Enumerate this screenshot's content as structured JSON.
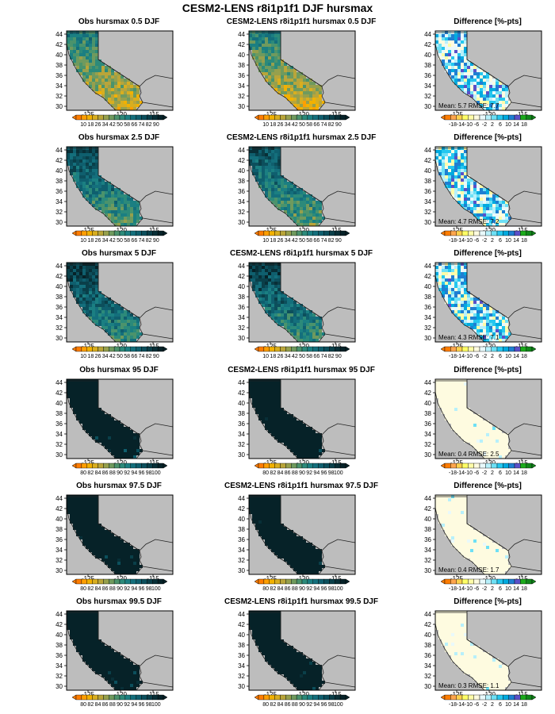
{
  "title": "CESM2-LENS r8i1p1f1 DJF hursmax",
  "colors": {
    "obs_scale": [
      "#ff7d00",
      "#ff9f00",
      "#f2b100",
      "#d8ae20",
      "#b9a53a",
      "#96a04d",
      "#6f9a5e",
      "#4b936c",
      "#2c8a7a",
      "#1b7f82",
      "#146f7c",
      "#0f5f6e",
      "#0c4f5c",
      "#0a3f49",
      "#082f37",
      "#062228"
    ],
    "diff_scale": [
      "#ff7d00",
      "#ffa64d",
      "#ffd24d",
      "#ffff66",
      "#fffca8",
      "#fefbe0",
      "#e9f9fb",
      "#b7f0fb",
      "#6ee0f5",
      "#25c7ef",
      "#00aadf",
      "#1f7fd2",
      "#5a50c8",
      "#1bab1b",
      "#11871a"
    ],
    "land_gray": "#bdbdbd",
    "ocean_gray": "#bdbdbd"
  },
  "common": {
    "lat_ticks": [
      "44",
      "42",
      "40",
      "38",
      "36",
      "34",
      "32",
      "30"
    ],
    "lon_ticks": [
      "-125",
      "-120",
      "-115"
    ]
  },
  "rows": [
    {
      "obs_title": "Obs hursmax 0.5 DJF",
      "model_title": "CESM2-LENS r8i1p1f1 hursmax 0.5 DJF",
      "diff_title": "Difference [%-pts]",
      "scale_labels": [
        "10",
        "18",
        "26",
        "34",
        "42",
        "50",
        "58",
        "66",
        "74",
        "82",
        "90"
      ],
      "stats": "Mean: 5.7  RMSE: 7.7",
      "obs_fill": 0.35,
      "model_fill": 0.33,
      "diff_mean_level": 0.58
    },
    {
      "obs_title": "Obs hursmax 2.5 DJF",
      "model_title": "CESM2-LENS r8i1p1f1 hursmax 2.5 DJF",
      "diff_title": "Difference [%-pts]",
      "scale_labels": [
        "10",
        "18",
        "26",
        "34",
        "42",
        "50",
        "58",
        "66",
        "74",
        "82",
        "90"
      ],
      "stats": "Mean: 4.7  RMSE: 7.2",
      "obs_fill": 0.58,
      "model_fill": 0.56,
      "diff_mean_level": 0.56
    },
    {
      "obs_title": "Obs hursmax 5 DJF",
      "model_title": "CESM2-LENS r8i1p1f1 hursmax 5 DJF",
      "diff_title": "Difference [%-pts]",
      "scale_labels": [
        "10",
        "18",
        "26",
        "34",
        "42",
        "50",
        "58",
        "66",
        "74",
        "82",
        "90"
      ],
      "stats": "Mean: 4.3  RMSE: 7.1",
      "obs_fill": 0.66,
      "model_fill": 0.64,
      "diff_mean_level": 0.55
    },
    {
      "obs_title": "Obs hursmax 95 DJF",
      "model_title": "CESM2-LENS r8i1p1f1 hursmax 95 DJF",
      "diff_title": "Difference [%-pts]",
      "scale_labels": [
        "80",
        "82",
        "84",
        "86",
        "88",
        "90",
        "92",
        "94",
        "96",
        "98",
        "100"
      ],
      "stats": "Mean: 0.4  RMSE: 2.5",
      "obs_fill": 0.97,
      "model_fill": 0.97,
      "diff_mean_level": 0.5
    },
    {
      "obs_title": "Obs hursmax 97.5 DJF",
      "model_title": "CESM2-LENS r8i1p1f1 hursmax 97.5 DJF",
      "diff_title": "Difference [%-pts]",
      "scale_labels": [
        "80",
        "82",
        "84",
        "86",
        "88",
        "90",
        "92",
        "94",
        "96",
        "98",
        "100"
      ],
      "stats": "Mean: 0.4  RMSE: 1.7",
      "obs_fill": 0.98,
      "model_fill": 0.98,
      "diff_mean_level": 0.5
    },
    {
      "obs_title": "Obs hursmax 99.5 DJF",
      "model_title": "CESM2-LENS r8i1p1f1 hursmax 99.5 DJF",
      "diff_title": "Difference [%-pts]",
      "scale_labels": [
        "80",
        "82",
        "84",
        "86",
        "88",
        "90",
        "92",
        "94",
        "96",
        "98",
        "100"
      ],
      "stats": "Mean: 0.3  RMSE: 1.1",
      "obs_fill": 0.99,
      "model_fill": 0.99,
      "diff_mean_level": 0.49
    }
  ],
  "diff_scale_labels": [
    "-18",
    "-14",
    "-10",
    "-6",
    "-2",
    "2",
    "6",
    "10",
    "14",
    "18"
  ],
  "chart_data": {
    "type": "heatmap",
    "title": "CESM2-LENS r8i1p1f1 DJF hursmax",
    "panels_layout": "6 rows x 3 columns (Obs, Model, Difference)",
    "lat_ticks": [
      44,
      42,
      40,
      38,
      36,
      34,
      32,
      30
    ],
    "lon_ticks": [
      -125,
      -120,
      -115
    ],
    "difference_stats": [
      {
        "percentile": "0.5",
        "mean": 5.7,
        "rmse": 7.7
      },
      {
        "percentile": "2.5",
        "mean": 4.7,
        "rmse": 7.2
      },
      {
        "percentile": "5",
        "mean": 4.3,
        "rmse": 7.1
      },
      {
        "percentile": "95",
        "mean": 0.4,
        "rmse": 2.5
      },
      {
        "percentile": "97.5",
        "mean": 0.4,
        "rmse": 1.7
      },
      {
        "percentile": "99.5",
        "mean": 0.3,
        "rmse": 1.1
      }
    ],
    "colorbar_low_percentiles": [
      10,
      18,
      26,
      34,
      42,
      50,
      58,
      66,
      74,
      82,
      90
    ],
    "colorbar_high_percentiles": [
      80,
      82,
      84,
      86,
      88,
      90,
      92,
      94,
      96,
      98,
      100
    ],
    "colorbar_difference": [
      -18,
      -14,
      -10,
      -6,
      -2,
      2,
      6,
      10,
      14,
      18
    ]
  }
}
